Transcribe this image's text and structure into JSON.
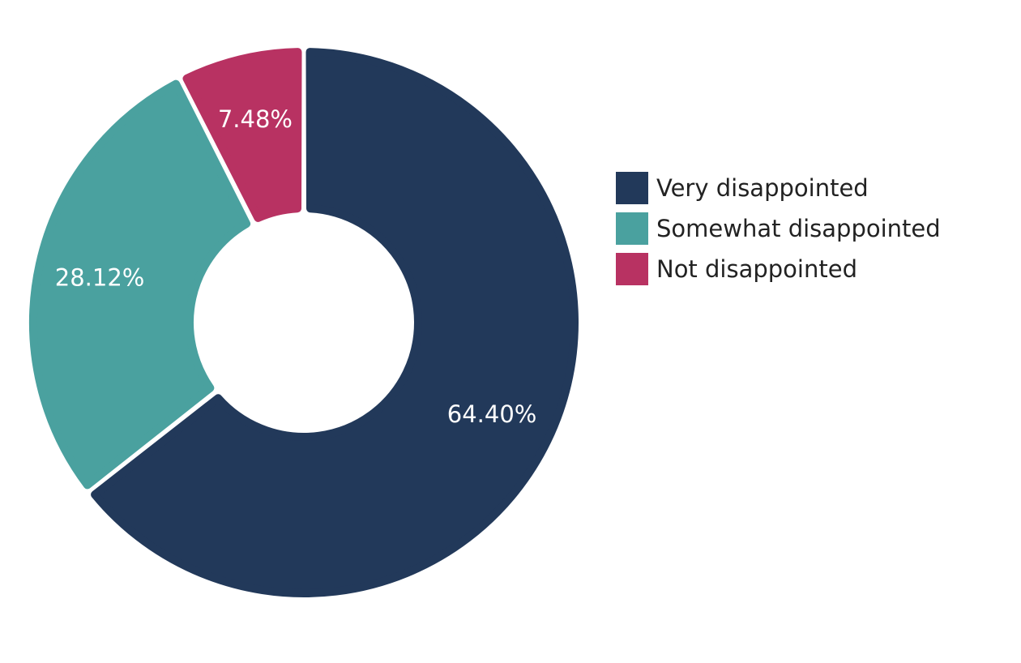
{
  "chart_data": {
    "type": "pie",
    "variant": "donut",
    "title": "",
    "categories": [
      "Very disappointed",
      "Somewhat disappointed",
      "Not disappointed"
    ],
    "values": [
      64.4,
      28.12,
      7.48
    ],
    "value_labels": [
      "64.40%",
      "28.12%",
      "7.48%"
    ],
    "colors": [
      "#22395a",
      "#4aa19f",
      "#b83262"
    ],
    "label_color": "#ffffff",
    "start_angle": "12 o'clock",
    "direction": "clockwise",
    "legend": {
      "position": "right",
      "entries": [
        "Very disappointed",
        "Somewhat disappointed",
        "Not disappointed"
      ]
    }
  }
}
